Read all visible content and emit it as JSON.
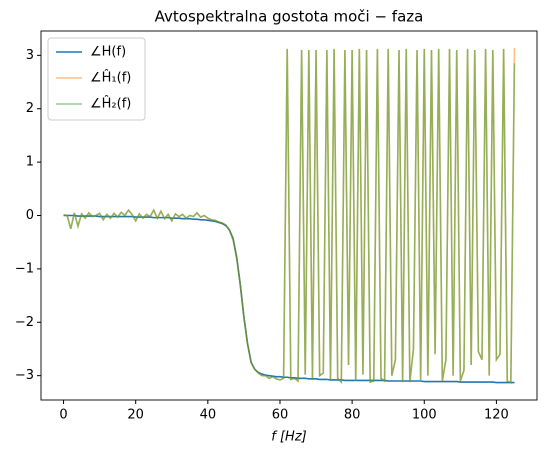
{
  "chart_data": {
    "type": "line",
    "title": "Avtospektralna gostota moči − faza",
    "xlabel": "f [Hz]",
    "x": [
      0,
      1,
      2,
      3,
      4,
      5,
      6,
      7,
      8,
      9,
      10,
      11,
      12,
      13,
      14,
      15,
      16,
      17,
      18,
      19,
      20,
      21,
      22,
      23,
      24,
      25,
      26,
      27,
      28,
      29,
      30,
      31,
      32,
      33,
      34,
      35,
      36,
      37,
      38,
      39,
      40,
      41,
      42,
      43,
      44,
      45,
      46,
      47,
      48,
      49,
      50,
      51,
      52,
      53,
      54,
      55,
      56,
      57,
      58,
      59,
      60,
      61,
      62,
      63,
      64,
      65,
      66,
      67,
      68,
      69,
      70,
      71,
      72,
      73,
      74,
      75,
      76,
      77,
      78,
      79,
      80,
      81,
      82,
      83,
      84,
      85,
      86,
      87,
      88,
      89,
      90,
      91,
      92,
      93,
      94,
      95,
      96,
      97,
      98,
      99,
      100,
      101,
      102,
      103,
      104,
      105,
      106,
      107,
      108,
      109,
      110,
      111,
      112,
      113,
      114,
      115,
      116,
      117,
      118,
      119,
      120,
      121,
      122,
      123,
      124,
      125
    ],
    "series": [
      {
        "name": "∠H(f)",
        "color": "#1f77b4",
        "alpha": 1,
        "values": [
          0,
          0,
          0,
          0,
          -0.01,
          -0.01,
          -0.01,
          -0.01,
          -0.01,
          -0.01,
          -0.02,
          -0.02,
          -0.02,
          -0.02,
          -0.02,
          -0.02,
          -0.02,
          -0.02,
          -0.02,
          -0.02,
          -0.03,
          -0.03,
          -0.03,
          -0.03,
          -0.03,
          -0.04,
          -0.04,
          -0.04,
          -0.04,
          -0.04,
          -0.05,
          -0.05,
          -0.05,
          -0.06,
          -0.06,
          -0.06,
          -0.07,
          -0.07,
          -0.08,
          -0.08,
          -0.09,
          -0.1,
          -0.11,
          -0.13,
          -0.15,
          -0.19,
          -0.27,
          -0.43,
          -0.78,
          -1.3,
          -1.9,
          -2.4,
          -2.75,
          -2.88,
          -2.94,
          -2.97,
          -2.99,
          -3.0,
          -3.01,
          -3.02,
          -3.02,
          -3.03,
          -3.03,
          -3.04,
          -3.04,
          -3.05,
          -3.05,
          -3.05,
          -3.06,
          -3.06,
          -3.06,
          -3.07,
          -3.07,
          -3.07,
          -3.08,
          -3.08,
          -3.08,
          -3.08,
          -3.09,
          -3.09,
          -3.09,
          -3.09,
          -3.09,
          -3.09,
          -3.09,
          -3.09,
          -3.09,
          -3.09,
          -3.09,
          -3.09,
          -3.1,
          -3.1,
          -3.1,
          -3.1,
          -3.1,
          -3.1,
          -3.1,
          -3.1,
          -3.1,
          -3.1,
          -3.11,
          -3.11,
          -3.11,
          -3.11,
          -3.11,
          -3.11,
          -3.11,
          -3.11,
          -3.11,
          -3.11,
          -3.12,
          -3.12,
          -3.12,
          -3.12,
          -3.12,
          -3.12,
          -3.12,
          -3.12,
          -3.12,
          -3.12,
          -3.13,
          -3.13,
          -3.13,
          -3.13,
          -3.13,
          -3.13
        ]
      },
      {
        "name": "∠Ĥ₁(f)",
        "color": "#ff7f0e",
        "alpha": 0.5,
        "values": [
          0.01,
          0,
          -0.25,
          0.05,
          -0.2,
          0.03,
          -0.05,
          0.05,
          -0.02,
          0,
          0.04,
          -0.08,
          0.02,
          -0.05,
          0.04,
          -0.03,
          0.06,
          0,
          0.1,
          0.02,
          -0.1,
          0.03,
          -0.05,
          0.02,
          -0.02,
          0.1,
          -0.05,
          0.08,
          -0.06,
          0.02,
          -0.1,
          0.03,
          -0.02,
          0.02,
          -0.05,
          0,
          -0.02,
          0.05,
          -0.03,
          0,
          -0.05,
          -0.08,
          -0.09,
          -0.12,
          -0.14,
          -0.18,
          -0.28,
          -0.45,
          -0.8,
          -1.3,
          -1.9,
          -2.4,
          -2.75,
          -2.88,
          -2.95,
          -3.0,
          -3.0,
          -3.05,
          -3.02,
          -3.06,
          -3.08,
          -3.05,
          3.12,
          -3.07,
          -3.05,
          -3.1,
          3.1,
          -2.98,
          3.1,
          -3.08,
          3.1,
          -3.0,
          -2.95,
          3.1,
          -3.08,
          3.12,
          -3.05,
          -3.12,
          3.1,
          -2.8,
          3.1,
          -3.1,
          3.12,
          -2.98,
          3.1,
          -3.12,
          -3.1,
          3.12,
          -3.05,
          -3.1,
          3.12,
          -3.0,
          -2.7,
          3.1,
          -3.12,
          3.12,
          -3.12,
          -2.5,
          3.1,
          -3.08,
          3.12,
          -3.0,
          3.1,
          -2.6,
          3.12,
          -3.1,
          -2.7,
          3.12,
          -3.0,
          3.1,
          -3.1,
          -2.9,
          3.12,
          -2.8,
          3.1,
          -2.55,
          -2.7,
          3.12,
          -3.0,
          3.1,
          -2.7,
          -2.6,
          3.12,
          -3.1,
          -3.13,
          3.14
        ]
      },
      {
        "name": "∠Ĥ₂(f)",
        "color": "#2ca02c",
        "alpha": 0.5,
        "values": [
          0.01,
          0,
          -0.25,
          0.05,
          -0.2,
          0.03,
          -0.05,
          0.05,
          -0.02,
          0,
          0.04,
          -0.08,
          0.02,
          -0.05,
          0.04,
          -0.03,
          0.06,
          0,
          0.1,
          0.02,
          -0.1,
          0.03,
          -0.05,
          0.02,
          -0.02,
          0.1,
          -0.05,
          0.08,
          -0.06,
          0.02,
          -0.1,
          0.03,
          -0.02,
          0.02,
          -0.05,
          0,
          -0.02,
          0.05,
          -0.03,
          0,
          -0.05,
          -0.08,
          -0.09,
          -0.12,
          -0.14,
          -0.18,
          -0.28,
          -0.45,
          -0.8,
          -1.3,
          -1.9,
          -2.4,
          -2.75,
          -2.88,
          -2.95,
          -3.0,
          -3.0,
          -3.05,
          -3.02,
          -3.06,
          -3.08,
          -3.05,
          3.12,
          -3.07,
          -3.05,
          -3.1,
          3.1,
          -2.98,
          3.1,
          -3.08,
          3.1,
          -3.0,
          -2.95,
          3.1,
          -3.08,
          3.12,
          -3.05,
          -3.12,
          3.1,
          -2.8,
          3.1,
          -3.1,
          3.12,
          -2.98,
          3.1,
          -3.12,
          -3.1,
          3.12,
          -3.05,
          -3.1,
          3.12,
          -3.0,
          -2.7,
          3.1,
          -3.12,
          3.12,
          -3.12,
          -2.5,
          3.1,
          -3.08,
          3.12,
          -3.0,
          3.1,
          -2.6,
          3.12,
          -3.1,
          -2.7,
          3.12,
          -3.0,
          3.1,
          -3.1,
          -2.9,
          3.12,
          -2.8,
          3.1,
          -2.55,
          -2.7,
          3.12,
          -3.0,
          3.1,
          -2.7,
          -2.6,
          3.12,
          -3.1,
          -3.13,
          2.85
        ]
      }
    ],
    "xlim": [
      -6.25,
      131.25
    ],
    "xticks": [
      0,
      20,
      40,
      60,
      80,
      100,
      120
    ],
    "ylim": [
      -3.456,
      3.456
    ],
    "yticks": [
      {
        "value": -3,
        "label": "−3"
      },
      {
        "value": -2,
        "label": "−2"
      },
      {
        "value": -1,
        "label": "−1"
      },
      0,
      1,
      2,
      3
    ],
    "legend": "upper left",
    "grid": false
  }
}
